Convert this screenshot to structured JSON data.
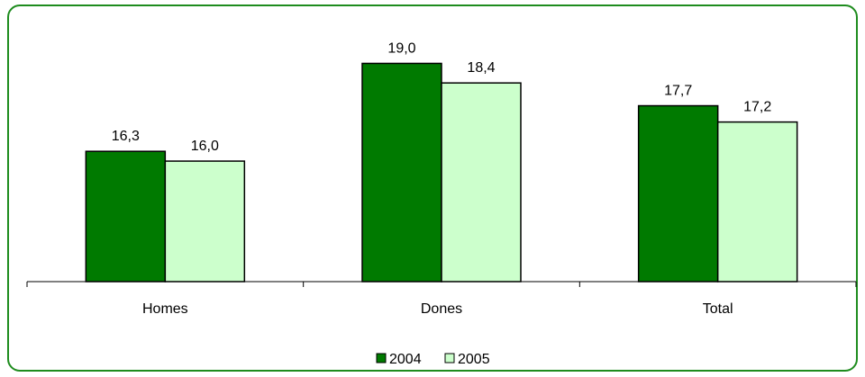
{
  "chart_data": {
    "type": "bar",
    "title": "",
    "xlabel": "",
    "ylabel": "",
    "categories": [
      "Homes",
      "Dones",
      "Total"
    ],
    "series": [
      {
        "name": "2004",
        "values": [
          16.3,
          19.0,
          17.7
        ],
        "color": "#007a00"
      },
      {
        "name": "2005",
        "values": [
          16.0,
          18.4,
          17.2
        ],
        "color": "#ccffcc"
      }
    ],
    "value_labels": [
      [
        "16,3",
        "19,0",
        "17,7"
      ],
      [
        "16,0",
        "18,4",
        "17,2"
      ]
    ],
    "ylim": [
      12.3,
      19.0
    ],
    "grid": false,
    "legend_position": "bottom",
    "frame_color": "#1e8c1e"
  }
}
